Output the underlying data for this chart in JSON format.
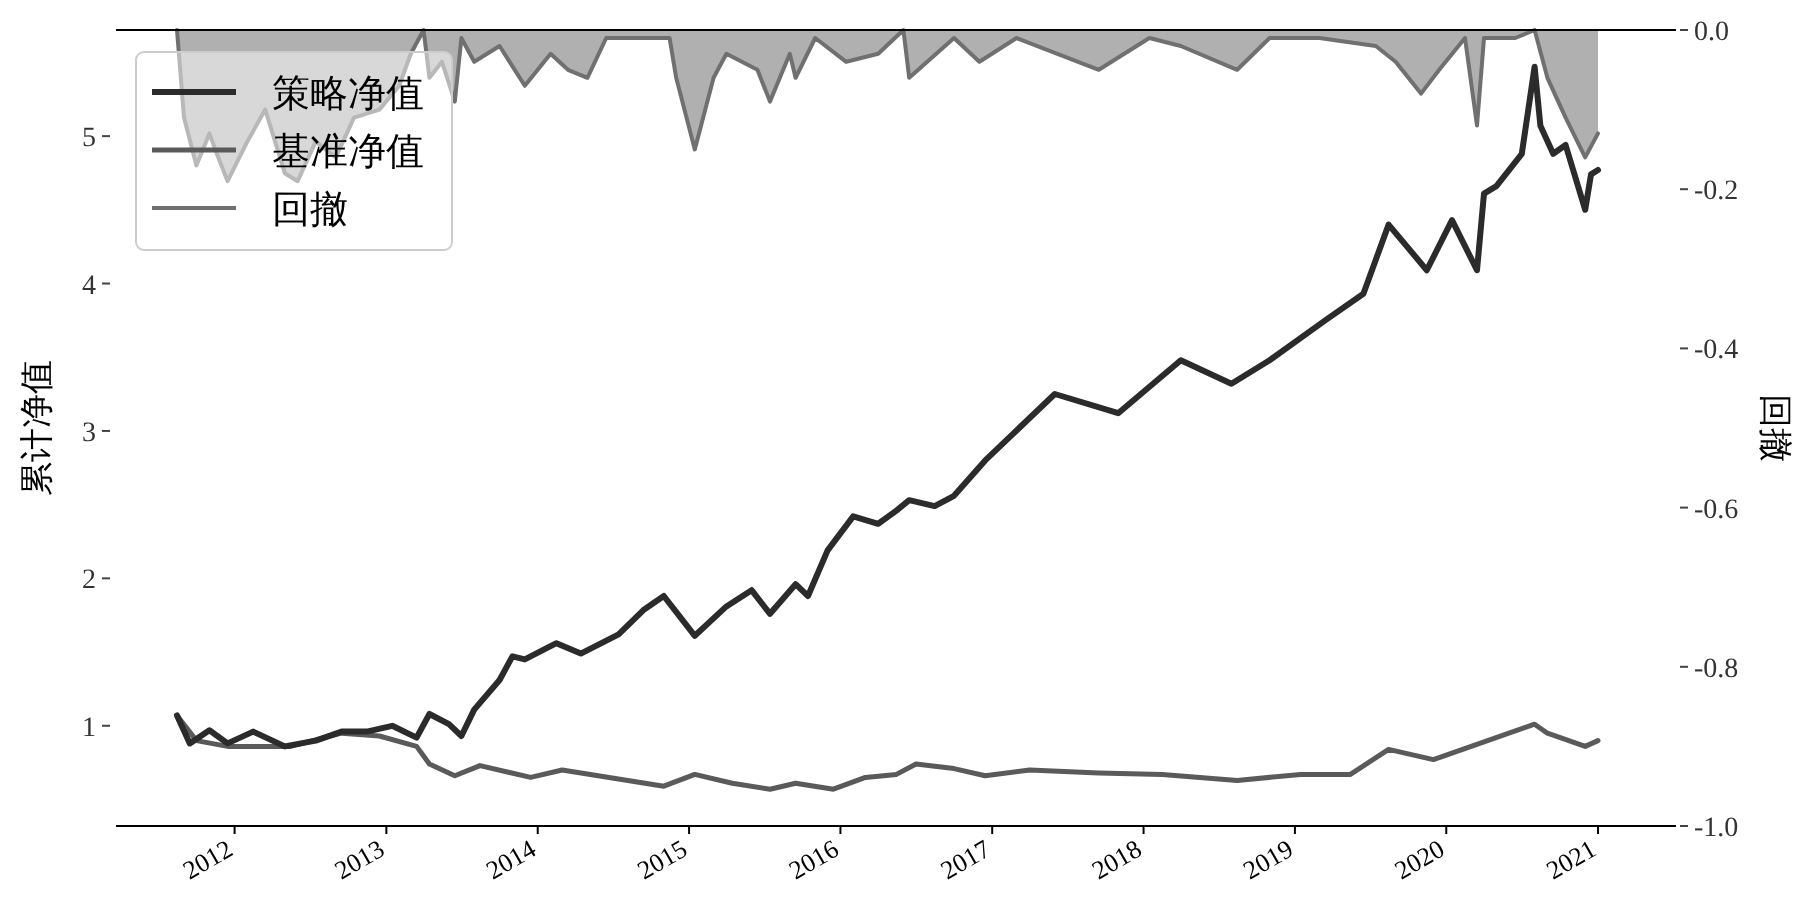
{
  "chart_data": {
    "type": "line",
    "ylabel": "累计净值",
    "y2label": "回撤",
    "xlim": [
      "2011-03-21",
      "2021-07-08"
    ],
    "xticks": [
      {
        "value": "2012-01-01",
        "label": "2012"
      },
      {
        "value": "2013-01-01",
        "label": "2013"
      },
      {
        "value": "2014-01-01",
        "label": "2014"
      },
      {
        "value": "2015-01-01",
        "label": "2015"
      },
      {
        "value": "2016-01-01",
        "label": "2016"
      },
      {
        "value": "2017-01-01",
        "label": "2017"
      },
      {
        "value": "2018-01-01",
        "label": "2018"
      },
      {
        "value": "2019-01-01",
        "label": "2019"
      },
      {
        "value": "2020-01-01",
        "label": "2020"
      },
      {
        "value": "2021-01-01",
        "label": "2021"
      }
    ],
    "ylim": [
      0.32,
      5.72
    ],
    "yticks": [
      1,
      2,
      3,
      4,
      5
    ],
    "y2lim": [
      -1.0,
      0.0
    ],
    "y2ticks": [
      {
        "value": -1.0,
        "label": "-1.0"
      },
      {
        "value": -0.8,
        "label": "-0.8"
      },
      {
        "value": -0.6,
        "label": "-0.6"
      },
      {
        "value": -0.4,
        "label": "-0.4"
      },
      {
        "value": -0.2,
        "label": "-0.2"
      },
      {
        "value": 0,
        "label": "0.0"
      }
    ],
    "grid": false,
    "legend": "top left",
    "marker": "none",
    "line_style": "solid",
    "series": [
      {
        "name": "策略净值",
        "color": "#2b2b2b",
        "x": [
          "2011-08-15",
          "2011-09-15",
          "2011-11-01",
          "2011-12-15",
          "2012-02-15",
          "2012-05-01",
          "2012-07-15",
          "2012-09-15",
          "2012-11-15",
          "2013-01-15",
          "2013-03-15",
          "2013-04-15",
          "2013-06-01",
          "2013-07-01",
          "2013-08-01",
          "2013-10-01",
          "2013-11-01",
          "2013-12-01",
          "2014-02-15",
          "2014-04-15",
          "2014-07-15",
          "2014-09-15",
          "2014-11-01",
          "2015-01-15",
          "2015-04-01",
          "2015-06-01",
          "2015-07-15",
          "2015-09-15",
          "2015-10-15",
          "2015-12-01",
          "2016-02-01",
          "2016-04-01",
          "2016-05-15",
          "2016-06-15",
          "2016-08-15",
          "2016-10-01",
          "2016-12-15",
          "2017-06-01",
          "2017-11-01",
          "2018-04-01",
          "2018-08-01",
          "2018-11-01",
          "2019-03-15",
          "2019-06-15",
          "2019-08-15",
          "2019-11-15",
          "2020-01-15",
          "2020-03-15",
          "2020-04-01",
          "2020-05-01",
          "2020-07-01",
          "2020-08-01",
          "2020-08-15",
          "2020-09-15",
          "2020-10-15",
          "2020-12-01",
          "2020-12-15",
          "2021-01-01"
        ],
        "values": [
          1.07,
          0.88,
          0.97,
          0.88,
          0.96,
          0.86,
          0.9,
          0.96,
          0.96,
          1.0,
          0.92,
          1.08,
          1.01,
          0.93,
          1.11,
          1.31,
          1.47,
          1.45,
          1.56,
          1.49,
          1.62,
          1.79,
          1.88,
          1.61,
          1.81,
          1.92,
          1.76,
          1.96,
          1.88,
          2.19,
          2.42,
          2.37,
          2.46,
          2.53,
          2.49,
          2.56,
          2.8,
          3.25,
          3.12,
          3.48,
          3.32,
          3.48,
          3.75,
          3.93,
          4.4,
          4.09,
          4.43,
          4.09,
          4.61,
          4.66,
          4.88,
          5.47,
          5.07,
          4.88,
          4.94,
          4.5,
          4.74,
          4.77
        ]
      },
      {
        "name": "基准净值",
        "color": "#5a5a5a",
        "x": [
          "2011-08-15",
          "2011-10-01",
          "2011-12-15",
          "2012-05-15",
          "2012-09-15",
          "2012-12-15",
          "2013-03-15",
          "2013-04-15",
          "2013-06-15",
          "2013-08-15",
          "2013-12-15",
          "2014-03-01",
          "2014-11-01",
          "2015-01-15",
          "2015-04-15",
          "2015-07-15",
          "2015-09-15",
          "2015-12-15",
          "2016-03-01",
          "2016-05-15",
          "2016-07-01",
          "2016-10-01",
          "2016-12-15",
          "2017-04-01",
          "2017-09-15",
          "2018-02-15",
          "2018-08-15",
          "2019-01-15",
          "2019-05-15",
          "2019-08-15",
          "2019-12-01",
          "2020-03-01",
          "2020-08-01",
          "2020-09-01",
          "2020-12-01",
          "2021-01-01"
        ],
        "values": [
          1.07,
          0.9,
          0.86,
          0.86,
          0.95,
          0.93,
          0.86,
          0.74,
          0.66,
          0.73,
          0.65,
          0.7,
          0.59,
          0.67,
          0.61,
          0.57,
          0.61,
          0.57,
          0.65,
          0.67,
          0.74,
          0.71,
          0.66,
          0.7,
          0.68,
          0.67,
          0.63,
          0.67,
          0.67,
          0.84,
          0.77,
          0.86,
          1.01,
          0.95,
          0.86,
          0.9
        ]
      },
      {
        "name": "回撤",
        "type": "area",
        "axis": "y2",
        "color": "#707070",
        "x": [
          "2011-08-15",
          "2011-09-01",
          "2011-10-01",
          "2011-11-01",
          "2011-11-15",
          "2011-12-15",
          "2012-02-01",
          "2012-03-15",
          "2012-05-01",
          "2012-06-01",
          "2012-07-15",
          "2012-09-01",
          "2012-10-15",
          "2012-12-15",
          "2013-02-01",
          "2013-03-01",
          "2013-04-01",
          "2013-04-15",
          "2013-05-15",
          "2013-06-15",
          "2013-07-01",
          "2013-08-01",
          "2013-10-01",
          "2013-12-01",
          "2014-02-01",
          "2014-03-15",
          "2014-05-01",
          "2014-06-15",
          "2014-09-01",
          "2014-11-15",
          "2014-12-01",
          "2015-01-15",
          "2015-03-01",
          "2015-04-01",
          "2015-06-15",
          "2015-07-15",
          "2015-09-01",
          "2015-09-15",
          "2015-11-01",
          "2016-01-15",
          "2016-04-01",
          "2016-06-01",
          "2016-06-15",
          "2016-10-01",
          "2016-12-01",
          "2017-03-01",
          "2017-09-15",
          "2018-01-15",
          "2018-04-01",
          "2018-08-15",
          "2018-11-01",
          "2019-03-01",
          "2019-07-15",
          "2019-09-01",
          "2019-11-01",
          "2019-12-15",
          "2020-02-15",
          "2020-03-15",
          "2020-04-01",
          "2020-06-15",
          "2020-08-01",
          "2020-09-01",
          "2020-10-15",
          "2020-12-01",
          "2021-01-01"
        ],
        "values": [
          0,
          -0.11,
          -0.17,
          -0.13,
          -0.15,
          -0.19,
          -0.14,
          -0.1,
          -0.18,
          -0.19,
          -0.14,
          -0.16,
          -0.11,
          -0.1,
          -0.07,
          -0.03,
          0,
          -0.06,
          -0.04,
          -0.09,
          -0.01,
          -0.04,
          -0.02,
          -0.07,
          -0.03,
          -0.05,
          -0.06,
          -0.01,
          -0.01,
          -0.01,
          -0.06,
          -0.15,
          -0.06,
          -0.03,
          -0.05,
          -0.09,
          -0.03,
          -0.06,
          -0.01,
          -0.04,
          -0.03,
          0,
          -0.06,
          -0.01,
          -0.04,
          -0.01,
          -0.05,
          -0.01,
          -0.02,
          -0.05,
          -0.01,
          -0.01,
          -0.02,
          -0.04,
          -0.08,
          -0.05,
          -0.01,
          -0.12,
          -0.01,
          -0.01,
          0,
          -0.06,
          -0.11,
          -0.16,
          -0.13
        ]
      }
    ]
  }
}
